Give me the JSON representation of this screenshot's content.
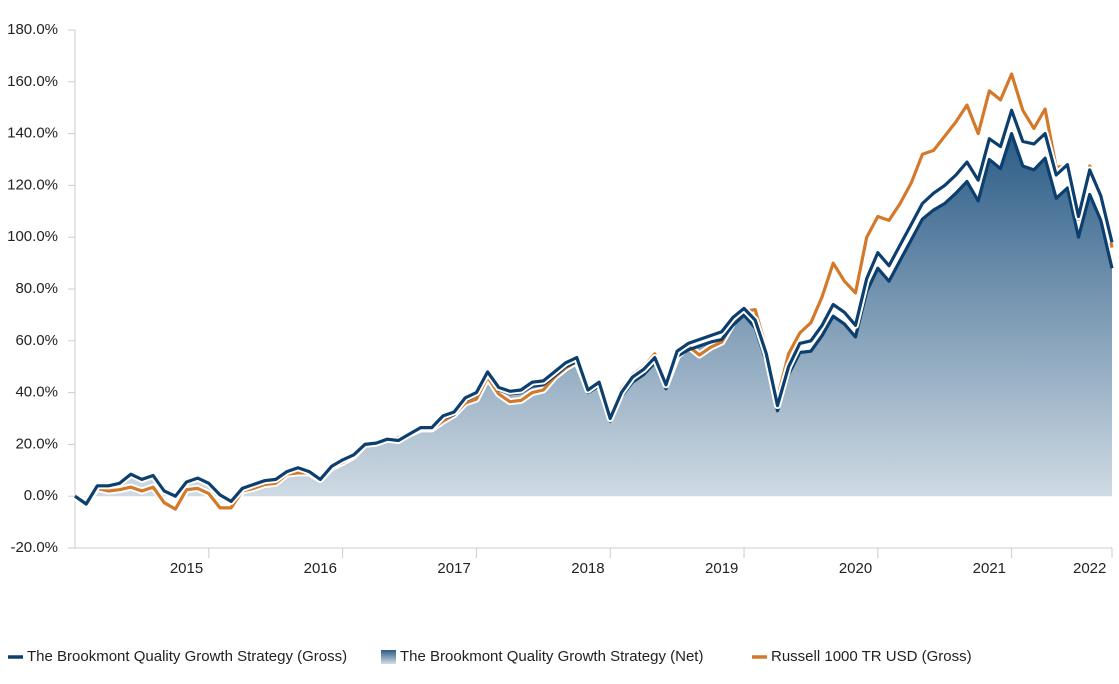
{
  "chart_data": {
    "type": "line",
    "categories": [
      null,
      null,
      null,
      null,
      null,
      null,
      null,
      null,
      null,
      null,
      "2015",
      null,
      null,
      null,
      null,
      null,
      null,
      null,
      null,
      null,
      null,
      null,
      "2016",
      null,
      null,
      null,
      null,
      null,
      null,
      null,
      null,
      null,
      null,
      null,
      "2017",
      null,
      null,
      null,
      null,
      null,
      null,
      null,
      null,
      null,
      null,
      null,
      "2018",
      null,
      null,
      null,
      null,
      null,
      null,
      null,
      null,
      null,
      null,
      null,
      "2019",
      null,
      null,
      null,
      null,
      null,
      null,
      null,
      null,
      null,
      null,
      null,
      "2020",
      null,
      null,
      null,
      null,
      null,
      null,
      null,
      null,
      null,
      null,
      null,
      "2021",
      null,
      null,
      null,
      null,
      null,
      null,
      null,
      null,
      "2022",
      null,
      null
    ],
    "ylim": [
      -20,
      180
    ],
    "yticks": [
      {
        "value": -20,
        "label": "-20.0%"
      },
      {
        "value": 0,
        "label": "0.0%"
      },
      {
        "value": 20,
        "label": "20.0%"
      },
      {
        "value": 40,
        "label": "40.0%"
      },
      {
        "value": 60,
        "label": "60.0%"
      },
      {
        "value": 80,
        "label": "80.0%"
      },
      {
        "value": 100,
        "label": "100.0%"
      },
      {
        "value": 120,
        "label": "120.0%"
      },
      {
        "value": 140,
        "label": "140.0%"
      },
      {
        "value": 160,
        "label": "160.0%"
      },
      {
        "value": 180,
        "label": "180.0%"
      }
    ],
    "legend": "bottom",
    "series": [
      {
        "name": "The Brookmont Quality Growth Strategy (Gross)",
        "color": "#0d3f6e",
        "values": [
          0,
          -3,
          4,
          4,
          5,
          8.5,
          6.5,
          8,
          2,
          0,
          5.5,
          7,
          5,
          0.5,
          -2,
          3,
          4.5,
          6,
          6.5,
          9.5,
          11,
          9.5,
          6.5,
          11.5,
          14,
          16,
          20,
          20.5,
          22,
          21.5,
          24,
          26.5,
          26.5,
          31,
          32.5,
          38,
          40,
          48,
          42,
          40.5,
          41,
          44,
          44.5,
          48,
          51.5,
          53.5,
          41,
          44,
          30,
          40,
          46,
          49,
          53.5,
          43,
          56,
          59,
          60.5,
          62,
          63.5,
          69,
          72.5,
          68,
          55,
          35,
          50,
          59,
          60,
          66,
          74,
          71,
          66,
          84,
          94,
          89,
          97,
          105,
          113,
          117,
          120,
          124,
          129,
          122,
          138,
          135,
          149,
          137,
          136,
          140,
          124,
          128,
          108,
          126,
          116,
          98
        ]
      },
      {
        "name": "The Brookmont Quality Growth Strategy (Net)",
        "color": "#0d3f6e",
        "area": true,
        "values": [
          0,
          -3.3,
          3.7,
          3.7,
          4.7,
          8,
          6,
          7.5,
          1.5,
          -0.5,
          5,
          6.5,
          4.5,
          0,
          -2.5,
          2.5,
          4,
          5.5,
          6,
          9,
          10.5,
          9,
          6,
          11,
          13.5,
          15.5,
          19.5,
          20,
          21.5,
          21,
          23.5,
          26,
          26,
          30,
          31.5,
          37,
          39,
          47,
          41,
          39.5,
          40,
          42.5,
          43,
          46.5,
          50,
          52,
          40,
          42.5,
          29,
          38.5,
          44,
          47,
          51.5,
          41.5,
          54,
          56.5,
          58,
          59.5,
          60.5,
          66,
          70,
          65,
          52,
          33,
          47,
          55.5,
          56,
          62,
          69.5,
          66.5,
          61.5,
          79,
          88,
          83,
          91,
          99,
          107,
          110.5,
          113,
          117,
          121.5,
          114,
          130,
          126.5,
          140,
          127.5,
          126,
          130.5,
          115,
          119,
          100,
          116.5,
          106.5,
          88
        ]
      },
      {
        "name": "Russell 1000 TR USD (Gross)",
        "color": "#d4792a",
        "values": [
          0,
          -2,
          3,
          2,
          2.5,
          3.5,
          2,
          3.5,
          -2.5,
          -5,
          2.5,
          3,
          1,
          -4.5,
          -4.5,
          2,
          3,
          4.5,
          5,
          8.5,
          9,
          9,
          6.5,
          11,
          13,
          15.5,
          20,
          20.5,
          22,
          22.5,
          24,
          26,
          26,
          29,
          31.5,
          36,
          37.5,
          46,
          39.5,
          36.5,
          37,
          40,
          41,
          46,
          49.5,
          52,
          41.5,
          43,
          31,
          41.5,
          47,
          50,
          55,
          43,
          54,
          58,
          54.5,
          57.5,
          59.5,
          67,
          71.5,
          72,
          57,
          38,
          55,
          63,
          67,
          77,
          90,
          83,
          78.5,
          100,
          108,
          106.5,
          113,
          121,
          132,
          133.5,
          139,
          144.5,
          151,
          140,
          156.5,
          153,
          163,
          149,
          142,
          149.5,
          127,
          127.5,
          107,
          127.5,
          117.5,
          96
        ]
      }
    ]
  }
}
